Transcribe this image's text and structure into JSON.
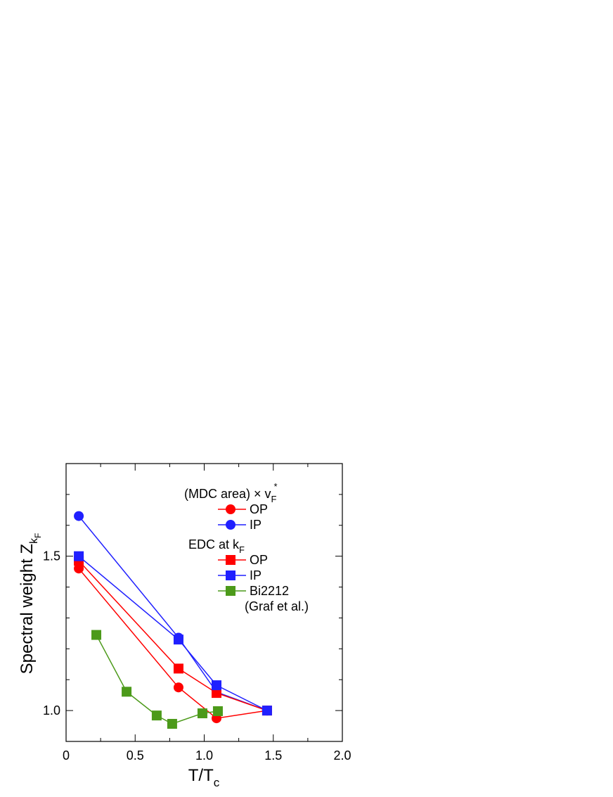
{
  "chart_data": {
    "type": "line",
    "ylabel": {
      "text": "Spectral weight Z",
      "sub": "k",
      "subsub": "F"
    },
    "xlabel": {
      "text": "T/T",
      "sub": "c"
    },
    "legend_groups": [
      {
        "text": "(MDC area)  ×  v",
        "sub": "F",
        "sup": "*"
      },
      {
        "text": "EDC at k",
        "sub": "F"
      }
    ],
    "legend_note": "(Graf et al.)",
    "xlim": [
      0,
      2
    ],
    "ylim": [
      0.9,
      1.8
    ],
    "xticks": [
      0,
      0.5,
      {
        "value": 1,
        "label": "1.0"
      },
      1.5,
      {
        "value": 2,
        "label": "2.0"
      }
    ],
    "yticks": [
      {
        "value": 1,
        "label": "1.0"
      },
      1.5
    ],
    "yminorticks": [
      1.1,
      1.2,
      1.3,
      1.4,
      1.6,
      1.7
    ],
    "xminorticks": [
      0.25,
      0.75,
      1.25,
      1.75
    ],
    "series": [
      {
        "name": "OP",
        "group": 0,
        "marker": "circle",
        "color": "#ff0000",
        "x": [
          0.092,
          0.814,
          1.089,
          1.455
        ],
        "values": [
          1.46,
          1.075,
          0.975,
          1.0
        ]
      },
      {
        "name": "IP",
        "group": 0,
        "marker": "circle",
        "color": "#2020ff",
        "x": [
          0.092,
          0.814,
          1.089,
          1.455
        ],
        "values": [
          1.63,
          1.236,
          1.06,
          1.0
        ]
      },
      {
        "name": "OP",
        "group": 1,
        "marker": "square",
        "color": "#ff0000",
        "x": [
          0.092,
          0.814,
          1.089,
          1.455
        ],
        "values": [
          1.485,
          1.136,
          1.057,
          1.0
        ]
      },
      {
        "name": "IP",
        "group": 1,
        "marker": "square",
        "color": "#2020ff",
        "x": [
          0.092,
          0.814,
          1.089,
          1.455
        ],
        "values": [
          1.5,
          1.23,
          1.082,
          1.0
        ]
      },
      {
        "name": "Bi2212",
        "group": 1,
        "marker": "square",
        "color": "#4c9a1a",
        "x": [
          0.219,
          0.438,
          0.656,
          0.768,
          0.987,
          1.099
        ],
        "values": [
          1.245,
          1.061,
          0.984,
          0.957,
          0.991,
          0.998
        ]
      }
    ]
  }
}
